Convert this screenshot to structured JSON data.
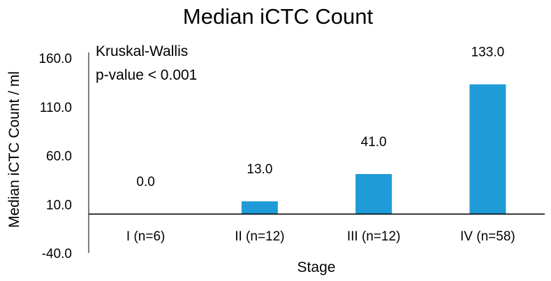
{
  "chart_data": {
    "type": "bar",
    "title": "Median iCTC Count",
    "xlabel": "Stage",
    "ylabel": "Median iCTC Count / ml",
    "categories": [
      "I (n=6)",
      "II (n=12)",
      "III (n=12)",
      "IV (n=58)"
    ],
    "values": [
      0,
      13,
      41,
      133
    ],
    "data_labels": [
      "0.0",
      "13.0",
      "41.0",
      "133.0"
    ],
    "ylim": [
      -40,
      160
    ],
    "yticks": [
      -40,
      10,
      60,
      110,
      160
    ],
    "ytick_labels": [
      "-40.0",
      "10.0",
      "60.0",
      "110.0",
      "160.0"
    ],
    "annotation": [
      "Kruskal-Wallis",
      "p-value < 0.001"
    ],
    "bar_color": "#1f9bd7",
    "grid": false,
    "legend": "none"
  }
}
